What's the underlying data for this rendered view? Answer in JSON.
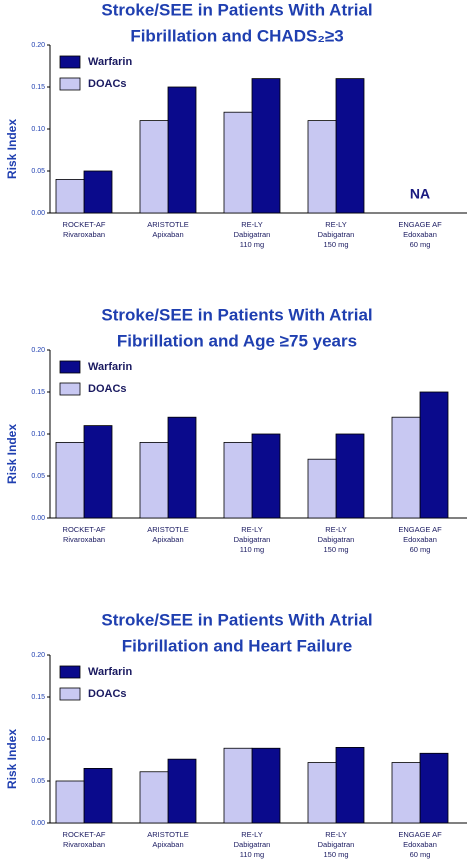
{
  "chart_data": [
    {
      "type": "bar",
      "title": [
        "Stroke/SEE in Patients With Atrial",
        "Fibrillation and CHADS₂≥3"
      ],
      "y_label": "Risk Index",
      "categories": [
        [
          "ROCKET-AF",
          "Rivaroxaban"
        ],
        [
          "ARISTOTLE",
          "Apixaban"
        ],
        [
          "RE-LY",
          "Dabigatran",
          "110 mg"
        ],
        [
          "RE-LY",
          "Dabigatran",
          "150 mg"
        ],
        [
          "ENGAGE AF",
          "Edoxaban",
          "60 mg"
        ]
      ],
      "series": [
        {
          "name": "Warfarin",
          "color": "#0a0a8c",
          "values": [
            0.05,
            0.15,
            0.16,
            0.16,
            null
          ]
        },
        {
          "name": "DOACs",
          "color": "#c8c8f2",
          "values": [
            0.04,
            0.11,
            0.12,
            0.11,
            null
          ]
        }
      ],
      "na_label": "NA",
      "ylim": [
        0,
        0.2
      ],
      "yticks": [
        {
          "value": 0,
          "label": "0.00"
        },
        {
          "value": 0.05,
          "label": "0.05"
        },
        {
          "value": 0.1,
          "label": "0.10"
        },
        {
          "value": 0.15,
          "label": "0.15"
        },
        {
          "value": 0.2,
          "label": "0.20"
        }
      ]
    },
    {
      "type": "bar",
      "title": [
        "Stroke/SEE in Patients With Atrial",
        "Fibrillation and Age ≥75 years"
      ],
      "y_label": "Risk Index",
      "categories": [
        [
          "ROCKET-AF",
          "Rivaroxaban"
        ],
        [
          "ARISTOTLE",
          "Apixaban"
        ],
        [
          "RE-LY",
          "Dabigatran",
          "110 mg"
        ],
        [
          "RE-LY",
          "Dabigatran",
          "150 mg"
        ],
        [
          "ENGAGE AF",
          "Edoxaban",
          "60 mg"
        ]
      ],
      "series": [
        {
          "name": "Warfarin",
          "color": "#0a0a8c",
          "values": [
            0.11,
            0.12,
            0.1,
            0.1,
            0.15
          ]
        },
        {
          "name": "DOACs",
          "color": "#c8c8f2",
          "values": [
            0.09,
            0.09,
            0.09,
            0.07,
            0.12
          ]
        }
      ],
      "ylim": [
        0,
        0.2
      ],
      "yticks": [
        {
          "value": 0,
          "label": "0.00"
        },
        {
          "value": 0.05,
          "label": "0.05"
        },
        {
          "value": 0.1,
          "label": "0.10"
        },
        {
          "value": 0.15,
          "label": "0.15"
        },
        {
          "value": 0.2,
          "label": "0.20"
        }
      ]
    },
    {
      "type": "bar",
      "title": [
        "Stroke/SEE in Patients With Atrial",
        "Fibrillation and Heart Failure"
      ],
      "y_label": "Risk Index",
      "categories": [
        [
          "ROCKET-AF",
          "Rivaroxaban"
        ],
        [
          "ARISTOTLE",
          "Apixaban"
        ],
        [
          "RE-LY",
          "Dabigatran",
          "110 mg"
        ],
        [
          "RE-LY",
          "Dabigatran",
          "150 mg"
        ],
        [
          "ENGAGE AF",
          "Edoxaban",
          "60 mg"
        ]
      ],
      "series": [
        {
          "name": "Warfarin",
          "color": "#0a0a8c",
          "values": [
            0.065,
            0.076,
            0.089,
            0.09,
            0.083
          ]
        },
        {
          "name": "DOACs",
          "color": "#c8c8f2",
          "values": [
            0.05,
            0.061,
            0.089,
            0.072,
            0.072
          ]
        }
      ],
      "ylim": [
        0,
        0.2
      ],
      "yticks": [
        {
          "value": 0,
          "label": "0.00"
        },
        {
          "value": 0.05,
          "label": "0.05"
        },
        {
          "value": 0.1,
          "label": "0.10"
        },
        {
          "value": 0.15,
          "label": "0.15"
        },
        {
          "value": 0.2,
          "label": "0.20"
        }
      ]
    }
  ]
}
